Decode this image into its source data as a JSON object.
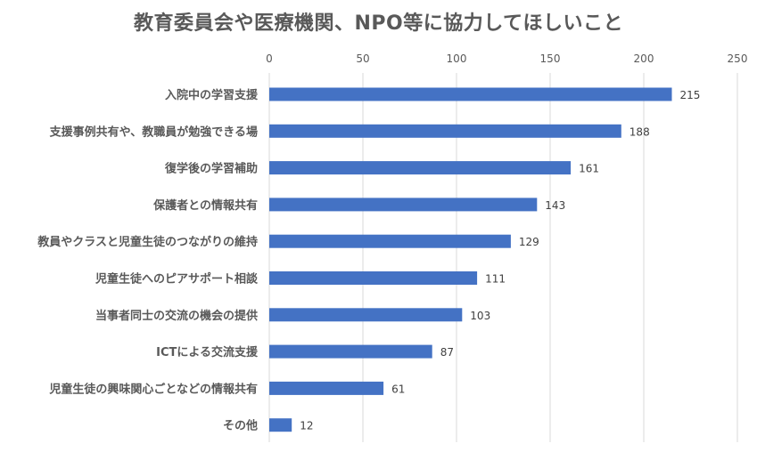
{
  "chart_data": {
    "type": "bar",
    "orientation": "horizontal",
    "title": "教育委員会や医療機関、NPO等に協力してほしいこと",
    "xlabel": "",
    "ylabel": "",
    "xlim": [
      0,
      250
    ],
    "ticks": [
      0,
      50,
      100,
      150,
      200,
      250
    ],
    "grid": true,
    "axis_position": "top",
    "categories": [
      "入院中の学習支援",
      "支援事例共有や、教職員が勉強できる場",
      "復学後の学習補助",
      "保護者との情報共有",
      "教員やクラスと児童生徒のつながりの維持",
      "児童生徒へのピアサポート相談",
      "当事者同士の交流の機会の提供",
      "ICTによる交流支援",
      "児童生徒の興味関心ごとなどの情報共有",
      "その他"
    ],
    "values": [
      215,
      188,
      161,
      143,
      129,
      111,
      103,
      87,
      61,
      12
    ],
    "colors": {
      "bar": "#4472C4",
      "grid": "#D9D9D9",
      "text": "#595959",
      "label": "#404040"
    }
  }
}
